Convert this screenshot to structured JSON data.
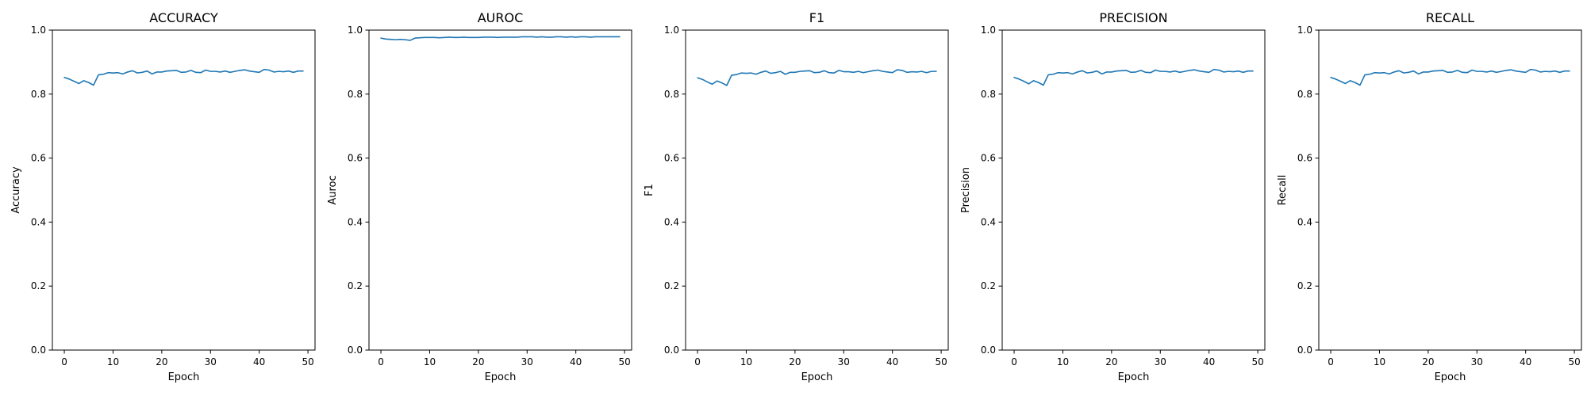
{
  "figure": {
    "line_color": "#1f77b4"
  },
  "chart_data": [
    {
      "type": "line",
      "title": "ACCURACY",
      "xlabel": "Epoch",
      "ylabel": "Accuracy",
      "xlim": [
        -2.45,
        51.45
      ],
      "ylim": [
        0.0,
        1.0
      ],
      "xticks": [
        0,
        10,
        20,
        30,
        40,
        50
      ],
      "yticks": [
        0.0,
        0.2,
        0.4,
        0.6,
        0.8,
        1.0
      ],
      "grid": false,
      "series": [
        {
          "x": [
            0,
            1,
            2,
            3,
            4,
            5,
            6,
            7,
            8,
            9,
            10,
            11,
            12,
            13,
            14,
            15,
            16,
            17,
            18,
            19,
            20,
            21,
            22,
            23,
            24,
            25,
            26,
            27,
            28,
            29,
            30,
            31,
            32,
            33,
            34,
            35,
            36,
            37,
            38,
            39,
            40,
            41,
            42,
            43,
            44,
            45,
            46,
            47,
            48,
            49
          ],
          "values": [
            0.852,
            0.847,
            0.84,
            0.833,
            0.842,
            0.836,
            0.828,
            0.86,
            0.862,
            0.867,
            0.866,
            0.867,
            0.863,
            0.869,
            0.873,
            0.866,
            0.868,
            0.872,
            0.863,
            0.869,
            0.869,
            0.872,
            0.873,
            0.874,
            0.868,
            0.869,
            0.874,
            0.868,
            0.867,
            0.875,
            0.871,
            0.871,
            0.869,
            0.872,
            0.868,
            0.871,
            0.874,
            0.876,
            0.872,
            0.87,
            0.868,
            0.877,
            0.875,
            0.869,
            0.871,
            0.87,
            0.872,
            0.868,
            0.872,
            0.872
          ]
        }
      ]
    },
    {
      "type": "line",
      "title": "AUROC",
      "xlabel": "Epoch",
      "ylabel": "Auroc",
      "xlim": [
        -2.45,
        51.45
      ],
      "ylim": [
        0.0,
        1.0
      ],
      "xticks": [
        0,
        10,
        20,
        30,
        40,
        50
      ],
      "yticks": [
        0.0,
        0.2,
        0.4,
        0.6,
        0.8,
        1.0
      ],
      "grid": false,
      "series": [
        {
          "x": [
            0,
            1,
            2,
            3,
            4,
            5,
            6,
            7,
            8,
            9,
            10,
            11,
            12,
            13,
            14,
            15,
            16,
            17,
            18,
            19,
            20,
            21,
            22,
            23,
            24,
            25,
            26,
            27,
            28,
            29,
            30,
            31,
            32,
            33,
            34,
            35,
            36,
            37,
            38,
            39,
            40,
            41,
            42,
            43,
            44,
            45,
            46,
            47,
            48,
            49
          ],
          "values": [
            0.975,
            0.972,
            0.971,
            0.97,
            0.971,
            0.97,
            0.968,
            0.975,
            0.976,
            0.977,
            0.977,
            0.977,
            0.976,
            0.977,
            0.978,
            0.977,
            0.977,
            0.978,
            0.977,
            0.977,
            0.977,
            0.978,
            0.978,
            0.978,
            0.977,
            0.978,
            0.978,
            0.978,
            0.978,
            0.979,
            0.979,
            0.979,
            0.978,
            0.979,
            0.978,
            0.978,
            0.979,
            0.979,
            0.978,
            0.979,
            0.978,
            0.979,
            0.979,
            0.978,
            0.979,
            0.979,
            0.979,
            0.979,
            0.979,
            0.979
          ]
        }
      ]
    },
    {
      "type": "line",
      "title": "F1",
      "xlabel": "Epoch",
      "ylabel": "F1",
      "xlim": [
        -2.45,
        51.45
      ],
      "ylim": [
        0.0,
        1.0
      ],
      "xticks": [
        0,
        10,
        20,
        30,
        40,
        50
      ],
      "yticks": [
        0.0,
        0.2,
        0.4,
        0.6,
        0.8,
        1.0
      ],
      "grid": false,
      "series": [
        {
          "x": [
            0,
            1,
            2,
            3,
            4,
            5,
            6,
            7,
            8,
            9,
            10,
            11,
            12,
            13,
            14,
            15,
            16,
            17,
            18,
            19,
            20,
            21,
            22,
            23,
            24,
            25,
            26,
            27,
            28,
            29,
            30,
            31,
            32,
            33,
            34,
            35,
            36,
            37,
            38,
            39,
            40,
            41,
            42,
            43,
            44,
            45,
            46,
            47,
            48,
            49
          ],
          "values": [
            0.851,
            0.846,
            0.838,
            0.831,
            0.841,
            0.835,
            0.827,
            0.859,
            0.861,
            0.866,
            0.865,
            0.866,
            0.862,
            0.868,
            0.872,
            0.865,
            0.867,
            0.871,
            0.862,
            0.868,
            0.868,
            0.871,
            0.872,
            0.873,
            0.867,
            0.868,
            0.873,
            0.867,
            0.866,
            0.874,
            0.87,
            0.87,
            0.868,
            0.871,
            0.867,
            0.87,
            0.873,
            0.875,
            0.871,
            0.869,
            0.867,
            0.876,
            0.874,
            0.868,
            0.87,
            0.869,
            0.871,
            0.867,
            0.871,
            0.871
          ]
        }
      ]
    },
    {
      "type": "line",
      "title": "PRECISION",
      "xlabel": "Epoch",
      "ylabel": "Precision",
      "xlim": [
        -2.45,
        51.45
      ],
      "ylim": [
        0.0,
        1.0
      ],
      "xticks": [
        0,
        10,
        20,
        30,
        40,
        50
      ],
      "yticks": [
        0.0,
        0.2,
        0.4,
        0.6,
        0.8,
        1.0
      ],
      "grid": false,
      "series": [
        {
          "x": [
            0,
            1,
            2,
            3,
            4,
            5,
            6,
            7,
            8,
            9,
            10,
            11,
            12,
            13,
            14,
            15,
            16,
            17,
            18,
            19,
            20,
            21,
            22,
            23,
            24,
            25,
            26,
            27,
            28,
            29,
            30,
            31,
            32,
            33,
            34,
            35,
            36,
            37,
            38,
            39,
            40,
            41,
            42,
            43,
            44,
            45,
            46,
            47,
            48,
            49
          ],
          "values": [
            0.852,
            0.847,
            0.84,
            0.832,
            0.842,
            0.836,
            0.828,
            0.86,
            0.862,
            0.867,
            0.866,
            0.867,
            0.863,
            0.869,
            0.873,
            0.866,
            0.868,
            0.872,
            0.863,
            0.869,
            0.869,
            0.872,
            0.873,
            0.874,
            0.868,
            0.869,
            0.874,
            0.868,
            0.867,
            0.875,
            0.871,
            0.871,
            0.869,
            0.872,
            0.868,
            0.871,
            0.874,
            0.876,
            0.872,
            0.87,
            0.868,
            0.877,
            0.875,
            0.869,
            0.871,
            0.87,
            0.872,
            0.868,
            0.872,
            0.872
          ]
        }
      ]
    },
    {
      "type": "line",
      "title": "RECALL",
      "xlabel": "Epoch",
      "ylabel": "Recall",
      "xlim": [
        -2.45,
        51.45
      ],
      "ylim": [
        0.0,
        1.0
      ],
      "xticks": [
        0,
        10,
        20,
        30,
        40,
        50
      ],
      "yticks": [
        0.0,
        0.2,
        0.4,
        0.6,
        0.8,
        1.0
      ],
      "grid": false,
      "series": [
        {
          "x": [
            0,
            1,
            2,
            3,
            4,
            5,
            6,
            7,
            8,
            9,
            10,
            11,
            12,
            13,
            14,
            15,
            16,
            17,
            18,
            19,
            20,
            21,
            22,
            23,
            24,
            25,
            26,
            27,
            28,
            29,
            30,
            31,
            32,
            33,
            34,
            35,
            36,
            37,
            38,
            39,
            40,
            41,
            42,
            43,
            44,
            45,
            46,
            47,
            48,
            49
          ],
          "values": [
            0.852,
            0.847,
            0.84,
            0.833,
            0.842,
            0.836,
            0.828,
            0.86,
            0.862,
            0.867,
            0.866,
            0.867,
            0.863,
            0.869,
            0.873,
            0.866,
            0.868,
            0.872,
            0.863,
            0.869,
            0.869,
            0.872,
            0.873,
            0.874,
            0.868,
            0.869,
            0.874,
            0.868,
            0.867,
            0.875,
            0.871,
            0.871,
            0.869,
            0.872,
            0.868,
            0.871,
            0.874,
            0.876,
            0.872,
            0.87,
            0.868,
            0.877,
            0.875,
            0.869,
            0.871,
            0.87,
            0.872,
            0.868,
            0.872,
            0.872
          ]
        }
      ]
    }
  ]
}
